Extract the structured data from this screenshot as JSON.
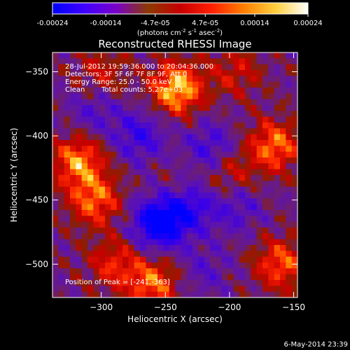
{
  "colorbar": {
    "ticks": [
      "-0.00024",
      "-0.00014",
      "-4.7e-05",
      "4.7e-05",
      "0.00014",
      "0.00024"
    ],
    "unit_main": "(photons cm",
    "unit_sup1": "-2",
    "unit_mid": " s",
    "unit_sup2": "-1",
    "unit_asec": " asec",
    "unit_sup3": "-2",
    "unit_close": ")",
    "colors": [
      "#0000ff",
      "#4000ff",
      "#7a00c8",
      "#8c3a00",
      "#c80000",
      "#ff2000",
      "#ff8000",
      "#ffd040",
      "#ffffff"
    ]
  },
  "chart_data": {
    "type": "heatmap",
    "title": "Reconstructed RHESSI Image",
    "xlabel": "Heliocentric X (arcsec)",
    "ylabel": "Heliocentric Y (arcsec)",
    "xlim": [
      -338,
      -147
    ],
    "ylim": [
      -526,
      -335
    ],
    "x_ticks": [
      -300,
      -250,
      -200,
      -150
    ],
    "y_ticks": [
      -350,
      -400,
      -450,
      -500
    ],
    "x_tick_labels": [
      "−300",
      "−250",
      "−200",
      "−150"
    ],
    "y_tick_labels": [
      "−350",
      "−400",
      "−450",
      "−500"
    ],
    "clim": [
      -0.00024,
      0.00024
    ],
    "peak": [
      -241,
      -363
    ],
    "annotations": {
      "time": "28-Jul-2012 19:59:36.000 to 20:04:36.000",
      "detectors": "Detectors: 3F 5F 6F 7F 8F 9F, Att 0",
      "energy": "Energy Range: 25.0 - 50.0 keV",
      "clean": "Clean",
      "counts": "Total counts: 5.27e+03",
      "peak_label": "Position of Peak = [-241,-363]"
    },
    "sources": [
      {
        "x": -241,
        "y": -363,
        "amp": 0.00024
      },
      {
        "x": -318,
        "y": -420,
        "amp": 0.00019
      },
      {
        "x": -305,
        "y": -450,
        "amp": 0.00017
      },
      {
        "x": -260,
        "y": -515,
        "amp": 0.00017
      },
      {
        "x": -290,
        "y": -500,
        "amp": 0.00012
      },
      {
        "x": -165,
        "y": -408,
        "amp": 0.00018
      },
      {
        "x": -160,
        "y": -500,
        "amp": 0.00016
      },
      {
        "x": -200,
        "y": -430,
        "amp": 0.0001
      },
      {
        "x": -195,
        "y": -350,
        "amp": 9e-05
      },
      {
        "x": -300,
        "y": -352,
        "amp": 9e-05
      },
      {
        "x": -240,
        "y": -440,
        "amp": 5e-05
      }
    ],
    "sinks": [
      {
        "x": -255,
        "y": -468,
        "amp": -0.00024
      },
      {
        "x": -232,
        "y": -455,
        "amp": -0.00015
      },
      {
        "x": -270,
        "y": -400,
        "amp": -0.00012
      },
      {
        "x": -215,
        "y": -410,
        "amp": -0.00011
      },
      {
        "x": -195,
        "y": -455,
        "amp": -9e-05
      },
      {
        "x": -305,
        "y": -380,
        "amp": -8e-05
      },
      {
        "x": -220,
        "y": -505,
        "amp": -6e-05
      }
    ]
  },
  "footer": {
    "timestamp": "6-May-2014 23:39"
  }
}
